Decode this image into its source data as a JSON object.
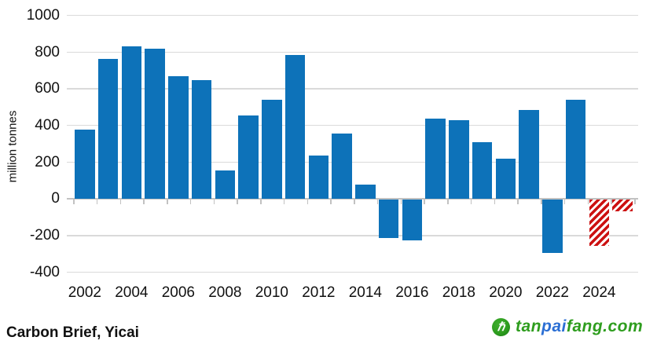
{
  "chart_data": {
    "type": "bar",
    "title": "",
    "xlabel": "",
    "ylabel": "million tonnes",
    "ylim": [
      -400,
      1000
    ],
    "ytick_interval": 200,
    "yticks": [
      1000,
      800,
      600,
      400,
      200,
      0,
      -200,
      -400
    ],
    "grid": true,
    "legend": "none",
    "x": [
      2002,
      2003,
      2004,
      2005,
      2006,
      2007,
      2008,
      2009,
      2010,
      2011,
      2012,
      2013,
      2014,
      2015,
      2016,
      2017,
      2018,
      2019,
      2020,
      2021,
      2022,
      2023,
      2024,
      2025
    ],
    "values": [
      380,
      765,
      830,
      820,
      670,
      650,
      155,
      455,
      540,
      785,
      235,
      355,
      80,
      -210,
      -220,
      440,
      430,
      310,
      220,
      485,
      -290,
      540,
      -250,
      -65
    ],
    "hatched_years": [
      2024,
      2025
    ],
    "xtick_labels": [
      "2002",
      "2004",
      "2006",
      "2008",
      "2010",
      "2012",
      "2014",
      "2016",
      "2018",
      "2020",
      "2022",
      "2024"
    ],
    "bar_color": "#0d72b9",
    "hatch_color": "#cc1111"
  },
  "footer": {
    "source": "Carbon Brief, Yicai"
  },
  "logo": {
    "icon_glyph": "ℏ",
    "segments": [
      {
        "text": "tan",
        "color": "#2e9d1e"
      },
      {
        "text": "pai",
        "color": "#2b6fd4"
      },
      {
        "text": "fang.com",
        "color": "#2e9d1e"
      }
    ]
  }
}
